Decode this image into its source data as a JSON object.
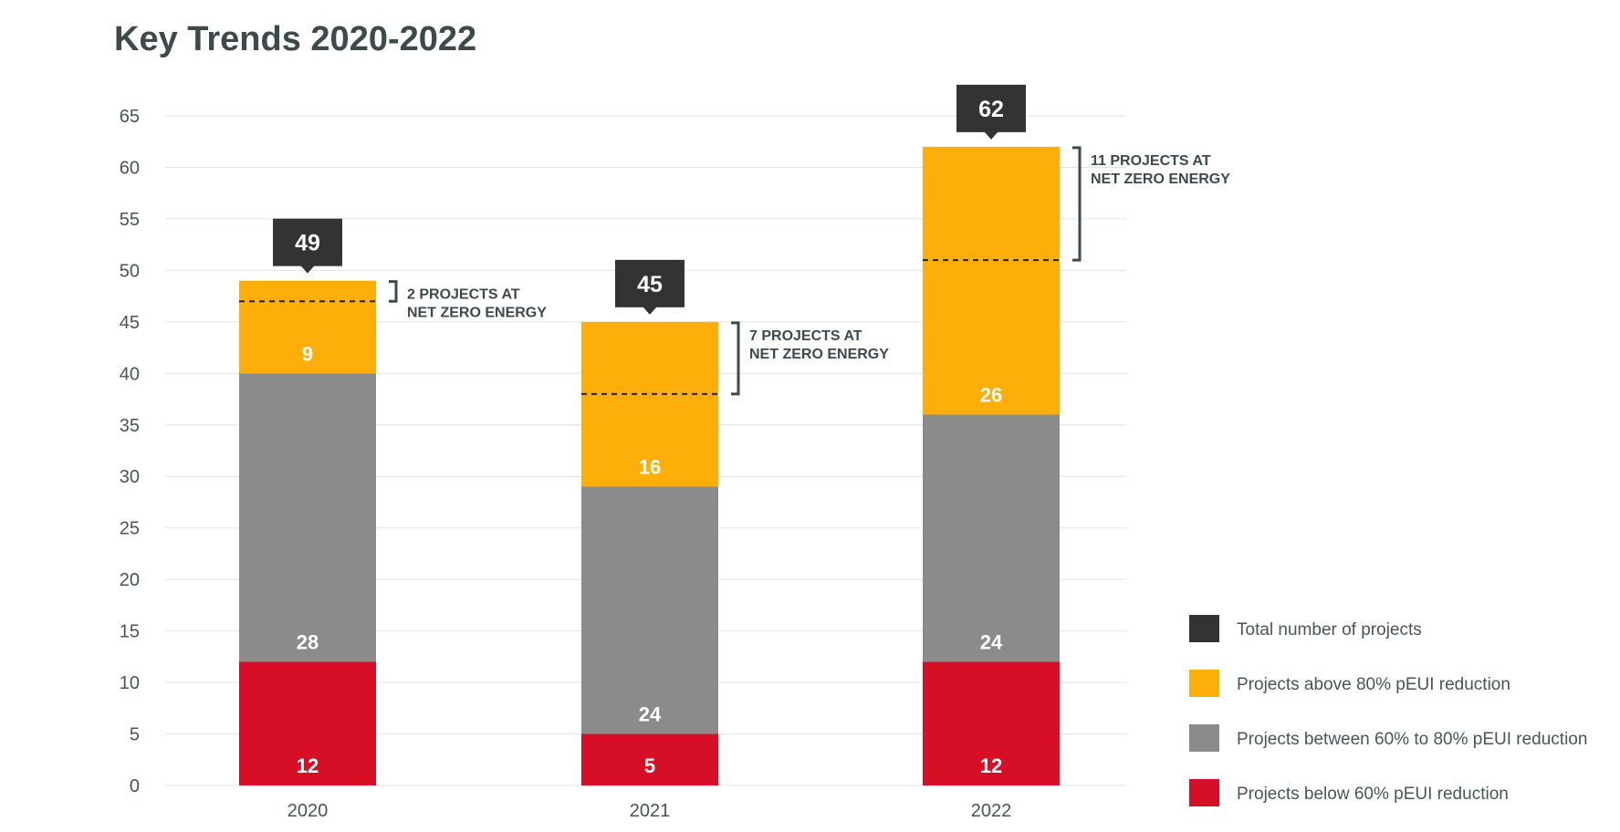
{
  "title": "Key Trends 2020-2022",
  "chart_data": {
    "type": "bar",
    "stacked": true,
    "categories": [
      "2020",
      "2021",
      "2022"
    ],
    "ylim": [
      0,
      65
    ],
    "yticks": [
      0,
      5,
      10,
      15,
      20,
      25,
      30,
      35,
      40,
      45,
      50,
      55,
      60,
      65
    ],
    "grid": true,
    "legend_position": "bottom-right",
    "series": [
      {
        "name": "Projects below 60% pEUI reduction",
        "color": "#d70f26",
        "values": [
          12,
          5,
          12
        ]
      },
      {
        "name": "Projects between 60% to 80% pEUI reduction",
        "color": "#8b8b8b",
        "values": [
          28,
          24,
          24
        ]
      },
      {
        "name": "Projects above 80% pEUI reduction",
        "color": "#fdae08",
        "values": [
          9,
          16,
          26
        ]
      }
    ],
    "totals": {
      "name": "Total number of projects",
      "color": "#333333",
      "values": [
        49,
        45,
        62
      ]
    },
    "annotations": [
      {
        "category": "2020",
        "net_zero": 2,
        "lines": [
          "2 PROJECTS AT",
          "NET ZERO ENERGY"
        ]
      },
      {
        "category": "2021",
        "net_zero": 7,
        "lines": [
          "7 PROJECTS AT",
          "NET ZERO ENERGY"
        ]
      },
      {
        "category": "2022",
        "net_zero": 11,
        "lines": [
          "11 PROJECTS AT",
          "NET ZERO ENERGY"
        ]
      }
    ]
  }
}
